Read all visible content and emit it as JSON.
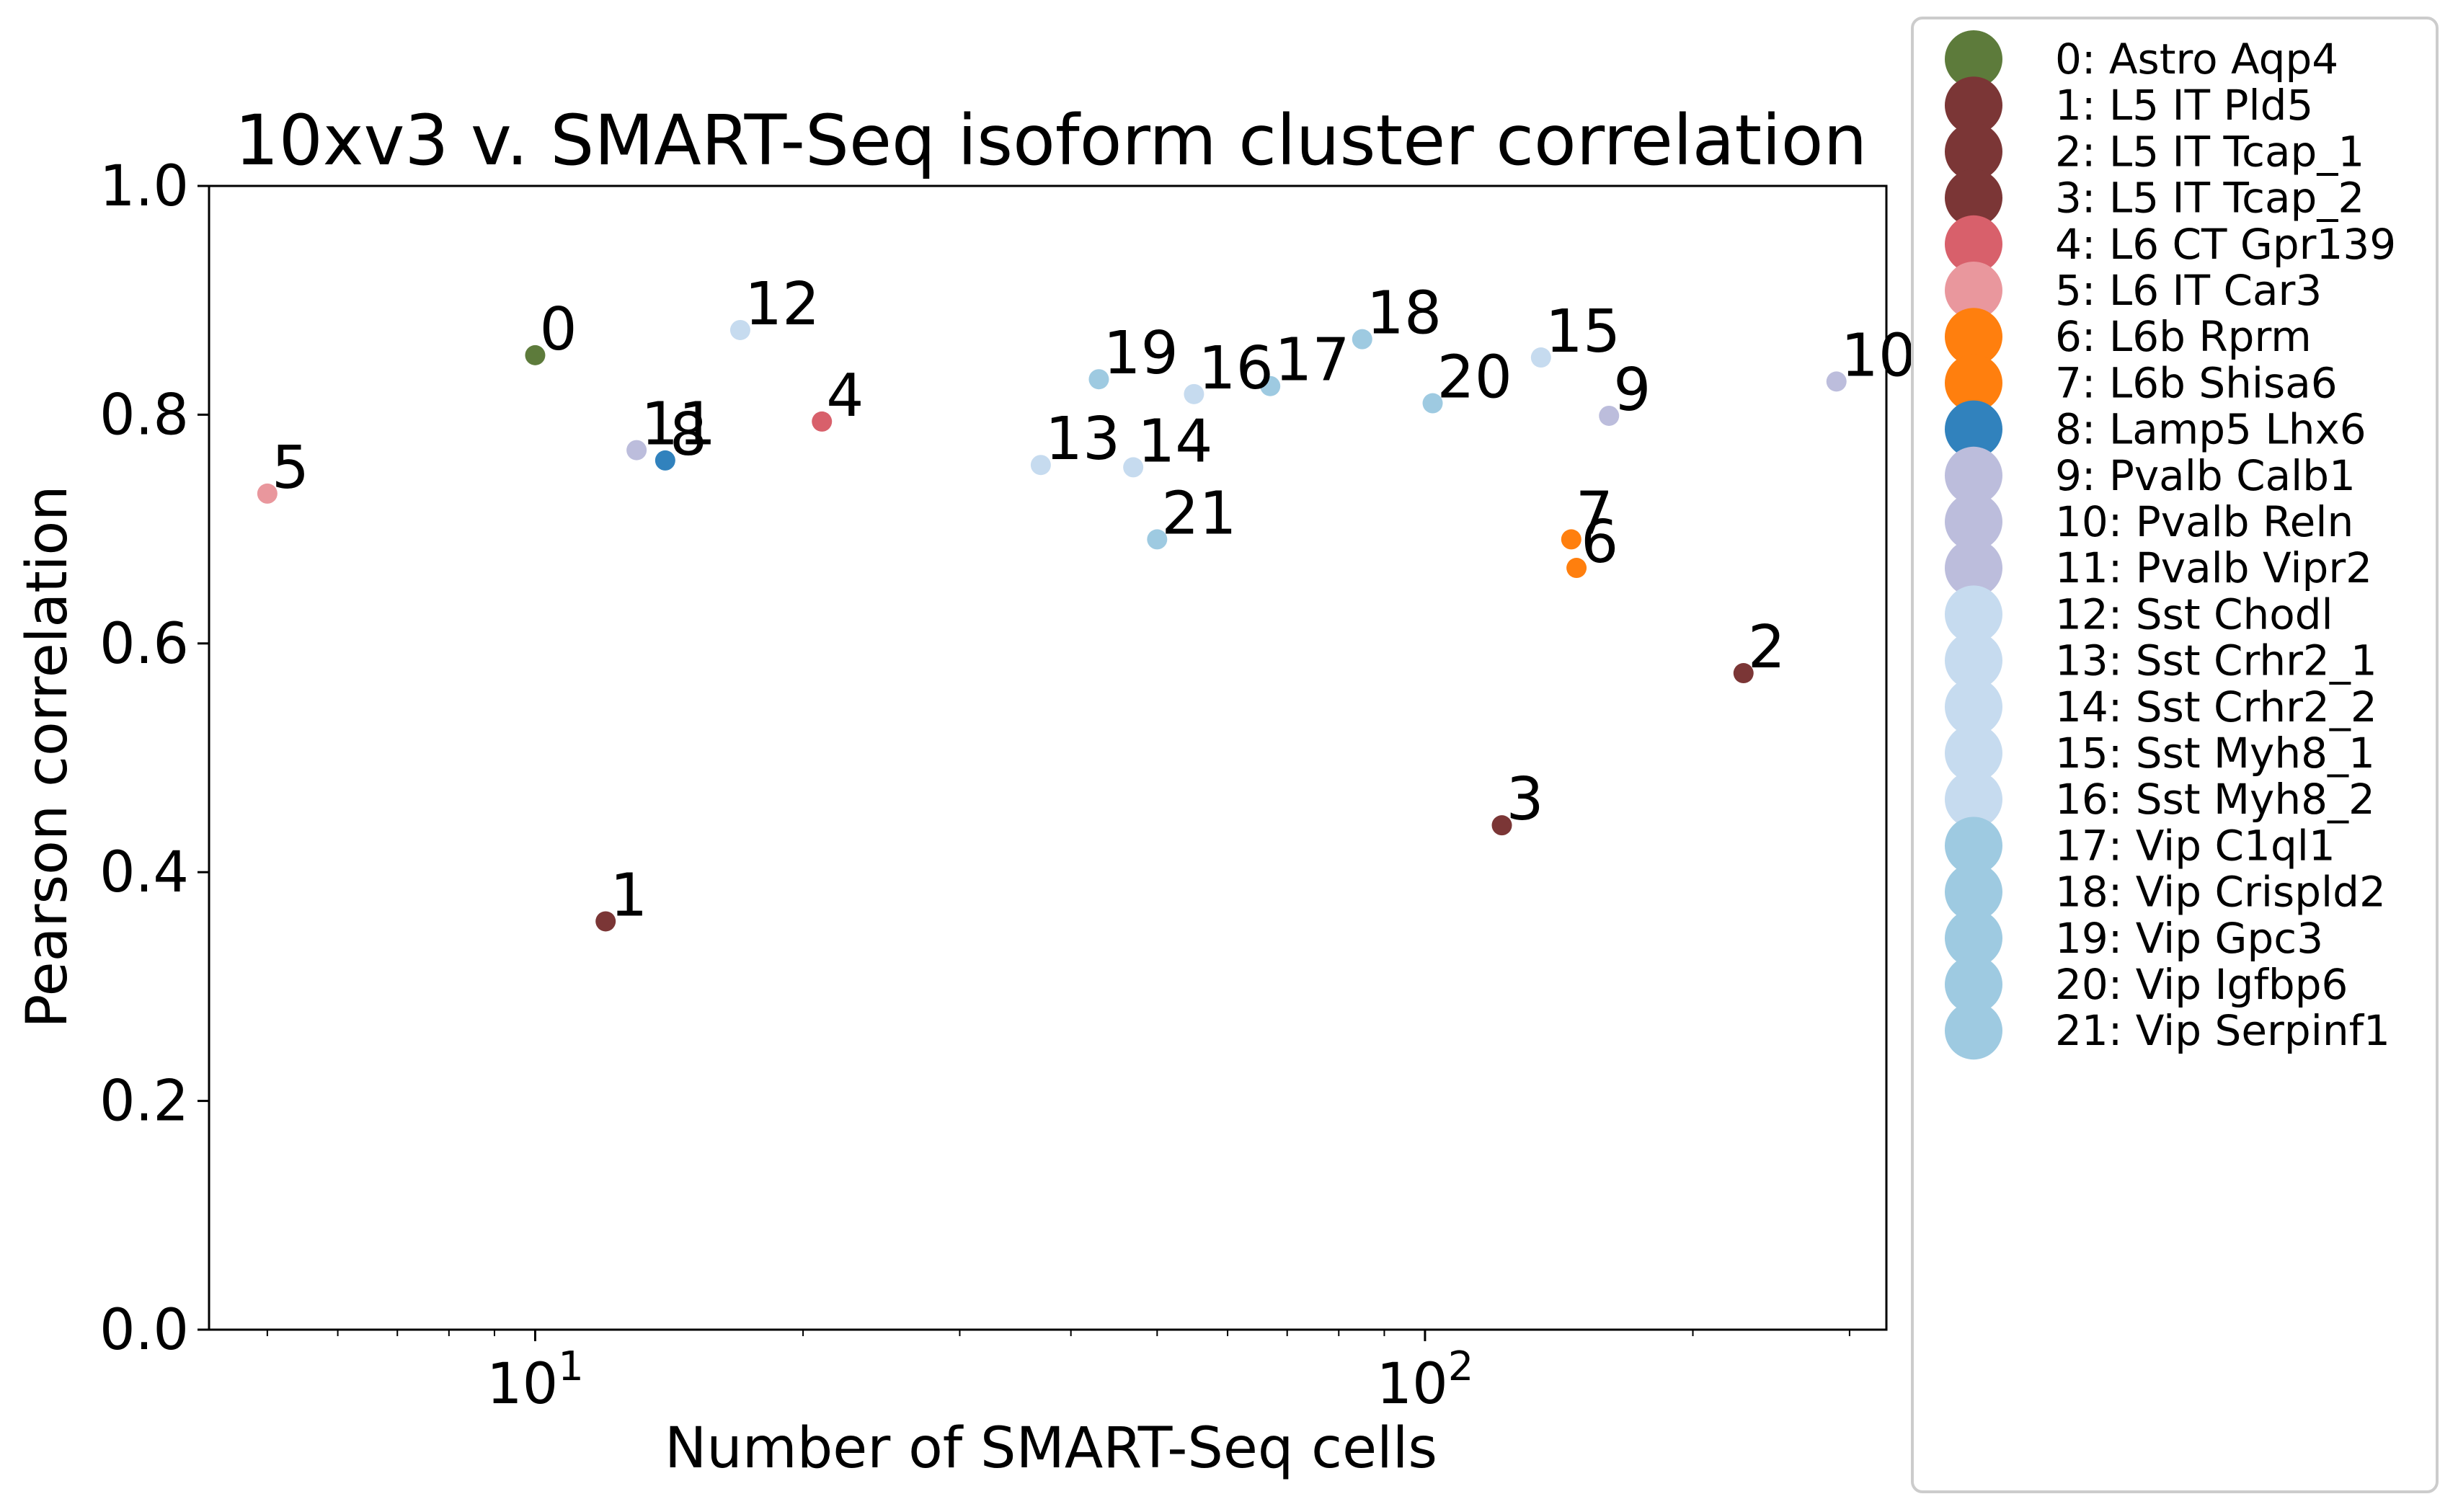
{
  "chart_data": {
    "type": "scatter",
    "title": "10xv3 v. SMART-Seq isoform cluster correlation",
    "xlabel": "Number of SMART-Seq cells",
    "ylabel": "Pearson correlation",
    "xscale": "log",
    "xlim": [
      4.3,
      330
    ],
    "ylim": [
      0.0,
      1.0
    ],
    "xticks": [
      {
        "value": 10,
        "base": "10",
        "exp": "1"
      },
      {
        "value": 100,
        "base": "10",
        "exp": "2"
      }
    ],
    "yticks": [
      {
        "value": 0.0,
        "label": "0.0"
      },
      {
        "value": 0.2,
        "label": "0.2"
      },
      {
        "value": 0.4,
        "label": "0.4"
      },
      {
        "value": 0.6,
        "label": "0.6"
      },
      {
        "value": 0.8,
        "label": "0.8"
      },
      {
        "value": 1.0,
        "label": "1.0"
      }
    ],
    "grid": false,
    "legend_position": "outside-right",
    "points": [
      {
        "id": "0",
        "name": "0: Astro Aqp4",
        "x": 10,
        "y": 0.852,
        "color": "#5d7b3b"
      },
      {
        "id": "1",
        "name": "1: L5 IT Pld5",
        "x": 12,
        "y": 0.357,
        "color": "#7b3636"
      },
      {
        "id": "2",
        "name": "2: L5 IT Tcap_1",
        "x": 228,
        "y": 0.574,
        "color": "#7b3636"
      },
      {
        "id": "3",
        "name": "3: L5 IT Tcap_2",
        "x": 122,
        "y": 0.441,
        "color": "#7b3636"
      },
      {
        "id": "4",
        "name": "4: L6 CT Gpr139",
        "x": 21,
        "y": 0.794,
        "color": "#d8606b"
      },
      {
        "id": "5",
        "name": "5: L6 IT Car3",
        "x": 5,
        "y": 0.731,
        "color": "#e9979d"
      },
      {
        "id": "6",
        "name": "6: L6b Rprm",
        "x": 148,
        "y": 0.666,
        "color": "#ff7f0e"
      },
      {
        "id": "7",
        "name": "7: L6b Shisa6",
        "x": 146,
        "y": 0.691,
        "color": "#ff7f0e"
      },
      {
        "id": "8",
        "name": "8: Lamp5 Lhx6",
        "x": 14,
        "y": 0.76,
        "color": "#3182bd"
      },
      {
        "id": "9",
        "name": "9: Pvalb Calb1",
        "x": 161,
        "y": 0.799,
        "color": "#bcbddc"
      },
      {
        "id": "10",
        "name": "10: Pvalb Reln",
        "x": 290,
        "y": 0.829,
        "color": "#bcbddc"
      },
      {
        "id": "11",
        "name": "11: Pvalb Vipr2",
        "x": 13,
        "y": 0.769,
        "color": "#bcbddc"
      },
      {
        "id": "12",
        "name": "12: Sst Chodl",
        "x": 17,
        "y": 0.874,
        "color": "#c6dbef"
      },
      {
        "id": "13",
        "name": "13: Sst Crhr2_1",
        "x": 37,
        "y": 0.756,
        "color": "#c6dbef"
      },
      {
        "id": "14",
        "name": "14: Sst Crhr2_2",
        "x": 47,
        "y": 0.754,
        "color": "#c6dbef"
      },
      {
        "id": "15",
        "name": "15: Sst Myh8_1",
        "x": 135,
        "y": 0.85,
        "color": "#c6dbef"
      },
      {
        "id": "16",
        "name": "16: Sst Myh8_2",
        "x": 55,
        "y": 0.818,
        "color": "#c6dbef"
      },
      {
        "id": "17",
        "name": "17: Vip C1ql1",
        "x": 67,
        "y": 0.825,
        "color": "#9ecae1"
      },
      {
        "id": "18",
        "name": "18: Vip Crispld2",
        "x": 85,
        "y": 0.866,
        "color": "#9ecae1"
      },
      {
        "id": "19",
        "name": "19: Vip Gpc3",
        "x": 43,
        "y": 0.831,
        "color": "#9ecae1"
      },
      {
        "id": "20",
        "name": "20: Vip Igfbp6",
        "x": 102,
        "y": 0.81,
        "color": "#9ecae1"
      },
      {
        "id": "21",
        "name": "21: Vip Serpinf1",
        "x": 50,
        "y": 0.691,
        "color": "#9ecae1"
      }
    ]
  }
}
